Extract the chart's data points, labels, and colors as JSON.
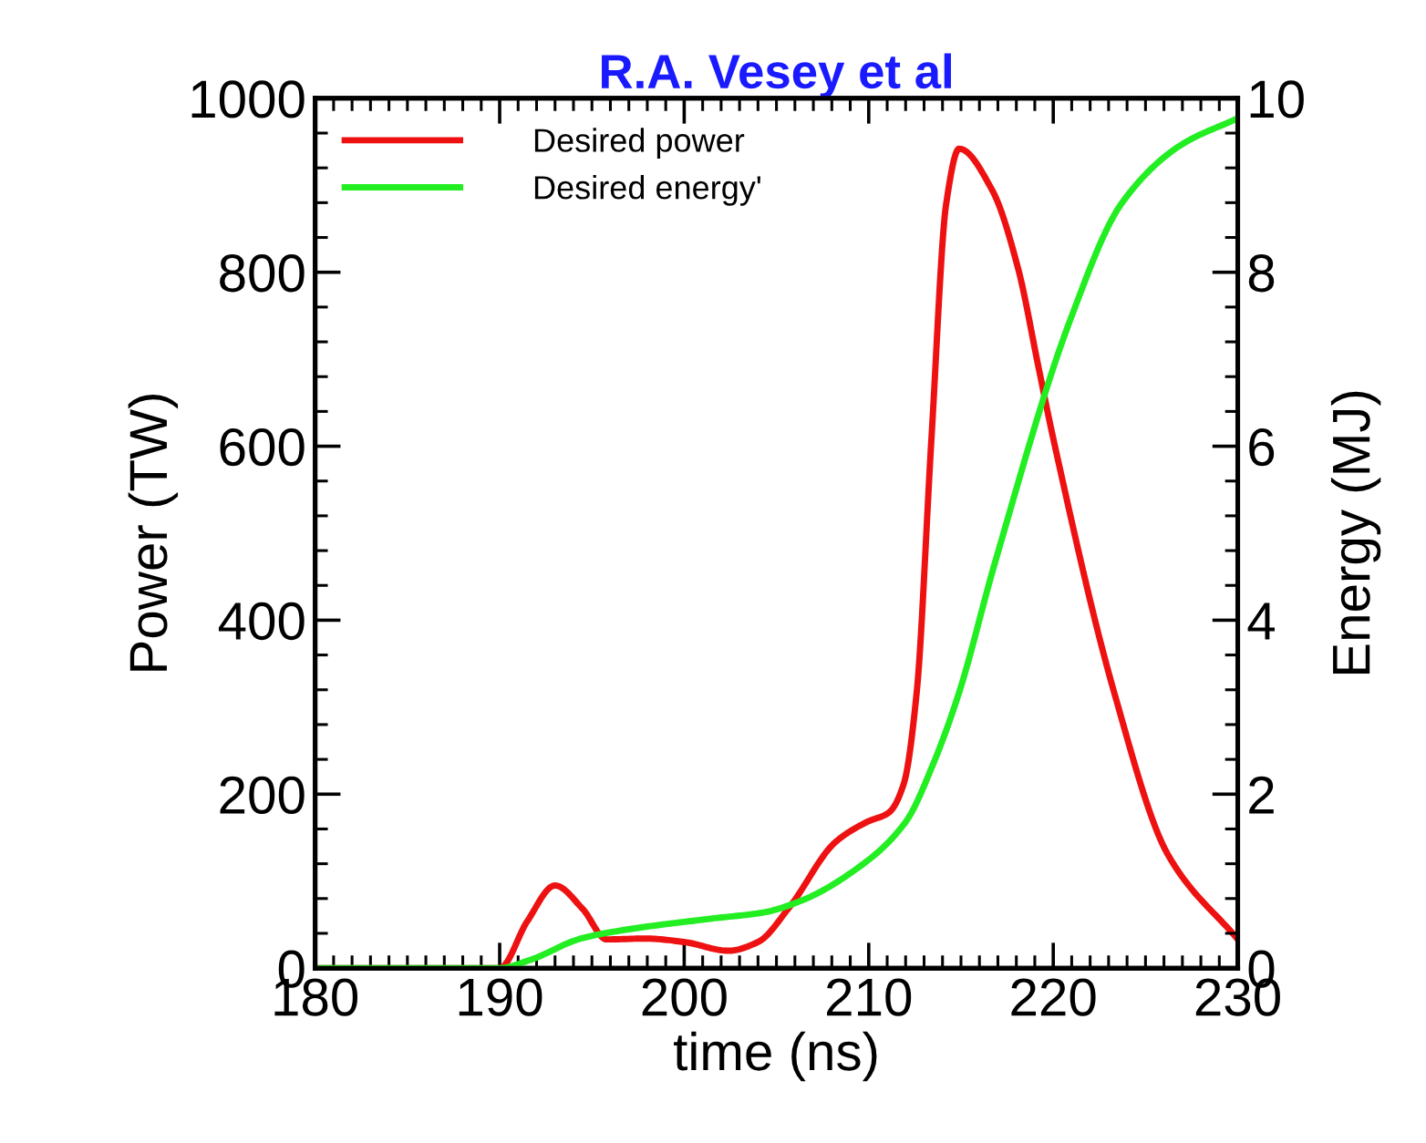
{
  "chart_data": {
    "type": "line",
    "title": "R.A. Vesey et al",
    "xlabel": "time (ns)",
    "ylabel": "Power (TW)",
    "y2label": "Energy (MJ)",
    "xlim": [
      180,
      230
    ],
    "xticks": [
      180,
      190,
      200,
      210,
      220,
      230
    ],
    "ylim": [
      0,
      1000
    ],
    "yticks": [
      0,
      200,
      400,
      600,
      800,
      1000
    ],
    "y2lim": [
      0,
      10
    ],
    "y2ticks": [
      0,
      2,
      4,
      6,
      8,
      10
    ],
    "grid": false,
    "legend": "top left",
    "line_style": "solid",
    "marker": "none",
    "series": [
      {
        "name": "Desired power",
        "color": "#ee1111",
        "x": [
          180,
          190,
          191.5,
          193,
          194.5,
          195.8,
          197.9,
          200,
          202.4,
          204,
          205.7,
          208.2,
          209.9,
          211.1,
          211.9,
          212.6,
          213.4,
          214.2,
          214.9,
          216.7,
          218.1,
          219.2,
          220,
          223.3,
          226.2,
          230
        ],
        "values": [
          0,
          0,
          54,
          95,
          68,
          33,
          34,
          30,
          20,
          30,
          70,
          145,
          168,
          179,
          212,
          317,
          609,
          879,
          942,
          894,
          804,
          691,
          609,
          317,
          131,
          33
        ]
      },
      {
        "name": "Desired energy'",
        "axis": "y2",
        "color": "#22ee22",
        "x": [
          180,
          190,
          191.6,
          194.4,
          196.5,
          201.5,
          204.3,
          206.4,
          209.2,
          212,
          213.5,
          214.9,
          216.8,
          220.9,
          223.7,
          226.9,
          230
        ],
        "values": [
          0,
          0,
          0.09,
          0.34,
          0.43,
          0.57,
          0.64,
          0.78,
          1.12,
          1.68,
          2.35,
          3.17,
          4.63,
          7.44,
          8.79,
          9.46,
          9.77
        ]
      }
    ]
  }
}
